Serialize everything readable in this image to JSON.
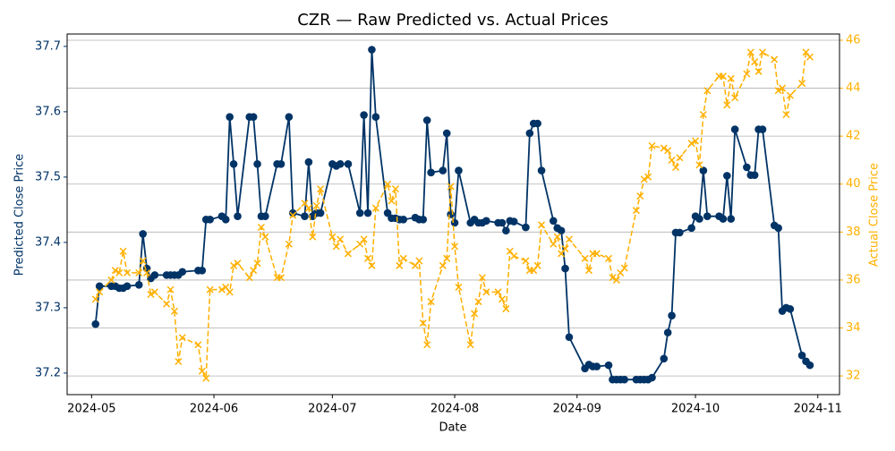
{
  "chart_data": {
    "type": "line",
    "title": "CZR — Raw Predicted vs. Actual Prices",
    "xlabel": "Date",
    "ylabel": "Predicted Close Price",
    "y2label": "Actual Close Price",
    "x": [
      1,
      2,
      5,
      6,
      7,
      8,
      9,
      12,
      13,
      14,
      15,
      16,
      19,
      20,
      21,
      22,
      23,
      27,
      28,
      29,
      30,
      33,
      34,
      35,
      36,
      37,
      40,
      41,
      42,
      43,
      44,
      47,
      48,
      50,
      51,
      54,
      55,
      56,
      57,
      58,
      61,
      62,
      63,
      65,
      68,
      69,
      70,
      71,
      72,
      75,
      76,
      77,
      78,
      79,
      82,
      83,
      84,
      85,
      86,
      89,
      90,
      91,
      92,
      93,
      96,
      97,
      98,
      99,
      100,
      103,
      104,
      105,
      106,
      107,
      110,
      111,
      112,
      113,
      114,
      117,
      118,
      119,
      120,
      121,
      125,
      126,
      127,
      128,
      131,
      132,
      133,
      134,
      135,
      138,
      139,
      140,
      141,
      142,
      145,
      146,
      147,
      148,
      149,
      152,
      153,
      154,
      155,
      156,
      159,
      160,
      161,
      162,
      163,
      166,
      167,
      168,
      169,
      170,
      173,
      174,
      175,
      176,
      177,
      180,
      181,
      182
    ],
    "xlim": [
      -6.2,
      189.5
    ],
    "xticks": [
      {
        "value": 0,
        "label": "2024-05"
      },
      {
        "value": 31,
        "label": "2024-06"
      },
      {
        "value": 61,
        "label": "2024-07"
      },
      {
        "value": 92,
        "label": "2024-08"
      },
      {
        "value": 123,
        "label": "2024-09"
      },
      {
        "value": 153,
        "label": "2024-10"
      },
      {
        "value": 184,
        "label": "2024-11"
      }
    ],
    "ylim": [
      37.167,
      37.719
    ],
    "yticks": [
      37.2,
      37.3,
      37.4,
      37.5,
      37.6,
      37.7
    ],
    "y2lim": [
      31.22,
      46.26
    ],
    "y2ticks": [
      32,
      34,
      36,
      38,
      40,
      42,
      44,
      46
    ],
    "grid": "y2",
    "series": [
      {
        "color": "#003366",
        "axis": "y",
        "marker": "o",
        "linestyle": "solid",
        "values": [
          37.275,
          37.333,
          37.333,
          37.333,
          37.33,
          37.33,
          37.333,
          37.335,
          37.413,
          37.36,
          37.345,
          37.35,
          37.35,
          37.35,
          37.35,
          37.35,
          37.355,
          37.357,
          37.357,
          37.435,
          37.435,
          37.44,
          37.435,
          37.592,
          37.52,
          37.44,
          37.592,
          37.592,
          37.52,
          37.44,
          37.44,
          37.52,
          37.52,
          37.592,
          37.445,
          37.44,
          37.523,
          37.44,
          37.445,
          37.445,
          37.52,
          37.517,
          37.52,
          37.52,
          37.445,
          37.595,
          37.445,
          37.695,
          37.592,
          37.445,
          37.437,
          37.437,
          37.435,
          37.435,
          37.438,
          37.435,
          37.435,
          37.587,
          37.507,
          37.51,
          37.567,
          37.443,
          37.43,
          37.51,
          37.43,
          37.435,
          37.43,
          37.43,
          37.433,
          37.43,
          37.43,
          37.418,
          37.433,
          37.432,
          37.423,
          37.567,
          37.582,
          37.582,
          37.51,
          37.433,
          37.422,
          37.418,
          37.36,
          37.255,
          37.207,
          37.213,
          37.21,
          37.21,
          37.212,
          37.19,
          37.19,
          37.19,
          37.19,
          37.19,
          37.19,
          37.19,
          37.19,
          37.193,
          37.222,
          37.262,
          37.288,
          37.415,
          37.415,
          37.422,
          37.44,
          37.436,
          37.51,
          37.44,
          37.44,
          37.436,
          37.502,
          37.436,
          37.573,
          37.515,
          37.503,
          37.503,
          37.573,
          37.573,
          37.426,
          37.422,
          37.295,
          37.3,
          37.298,
          37.227,
          37.218,
          37.212
        ]
      },
      {
        "color": "#ffb000",
        "axis": "y2",
        "marker": "x",
        "linestyle": "dashed",
        "values": [
          35.2,
          35.5,
          36.0,
          36.4,
          36.3,
          37.2,
          36.3,
          36.3,
          36.8,
          36.3,
          35.4,
          35.5,
          35.0,
          35.6,
          34.7,
          32.6,
          33.6,
          33.3,
          32.2,
          31.9,
          35.6,
          35.6,
          35.7,
          35.5,
          36.6,
          36.7,
          36.1,
          36.4,
          36.7,
          38.2,
          37.8,
          36.1,
          36.1,
          37.5,
          38.7,
          39.2,
          39.0,
          37.8,
          39.1,
          39.8,
          37.8,
          37.4,
          37.7,
          37.1,
          37.5,
          37.7,
          36.9,
          36.6,
          39.0,
          40.0,
          39.3,
          39.8,
          36.6,
          36.9,
          36.6,
          36.8,
          34.2,
          33.3,
          35.1,
          36.6,
          36.9,
          39.9,
          37.4,
          35.7,
          33.3,
          34.6,
          35.1,
          36.1,
          35.5,
          35.5,
          35.2,
          34.8,
          37.2,
          37.0,
          36.8,
          36.4,
          36.4,
          36.6,
          38.3,
          37.5,
          37.8,
          37.1,
          37.3,
          37.7,
          36.9,
          36.4,
          37.1,
          37.1,
          36.9,
          36.1,
          36.0,
          36.3,
          36.5,
          38.9,
          39.5,
          40.2,
          40.3,
          41.6,
          41.5,
          41.4,
          41.0,
          40.7,
          41.1,
          41.7,
          41.8,
          40.8,
          42.9,
          43.9,
          44.5,
          44.5,
          43.3,
          44.4,
          43.6,
          44.6,
          45.5,
          45.1,
          44.7,
          45.5,
          45.2,
          43.9,
          44.0,
          42.9,
          43.7,
          44.2,
          45.5,
          45.3
        ]
      }
    ]
  }
}
